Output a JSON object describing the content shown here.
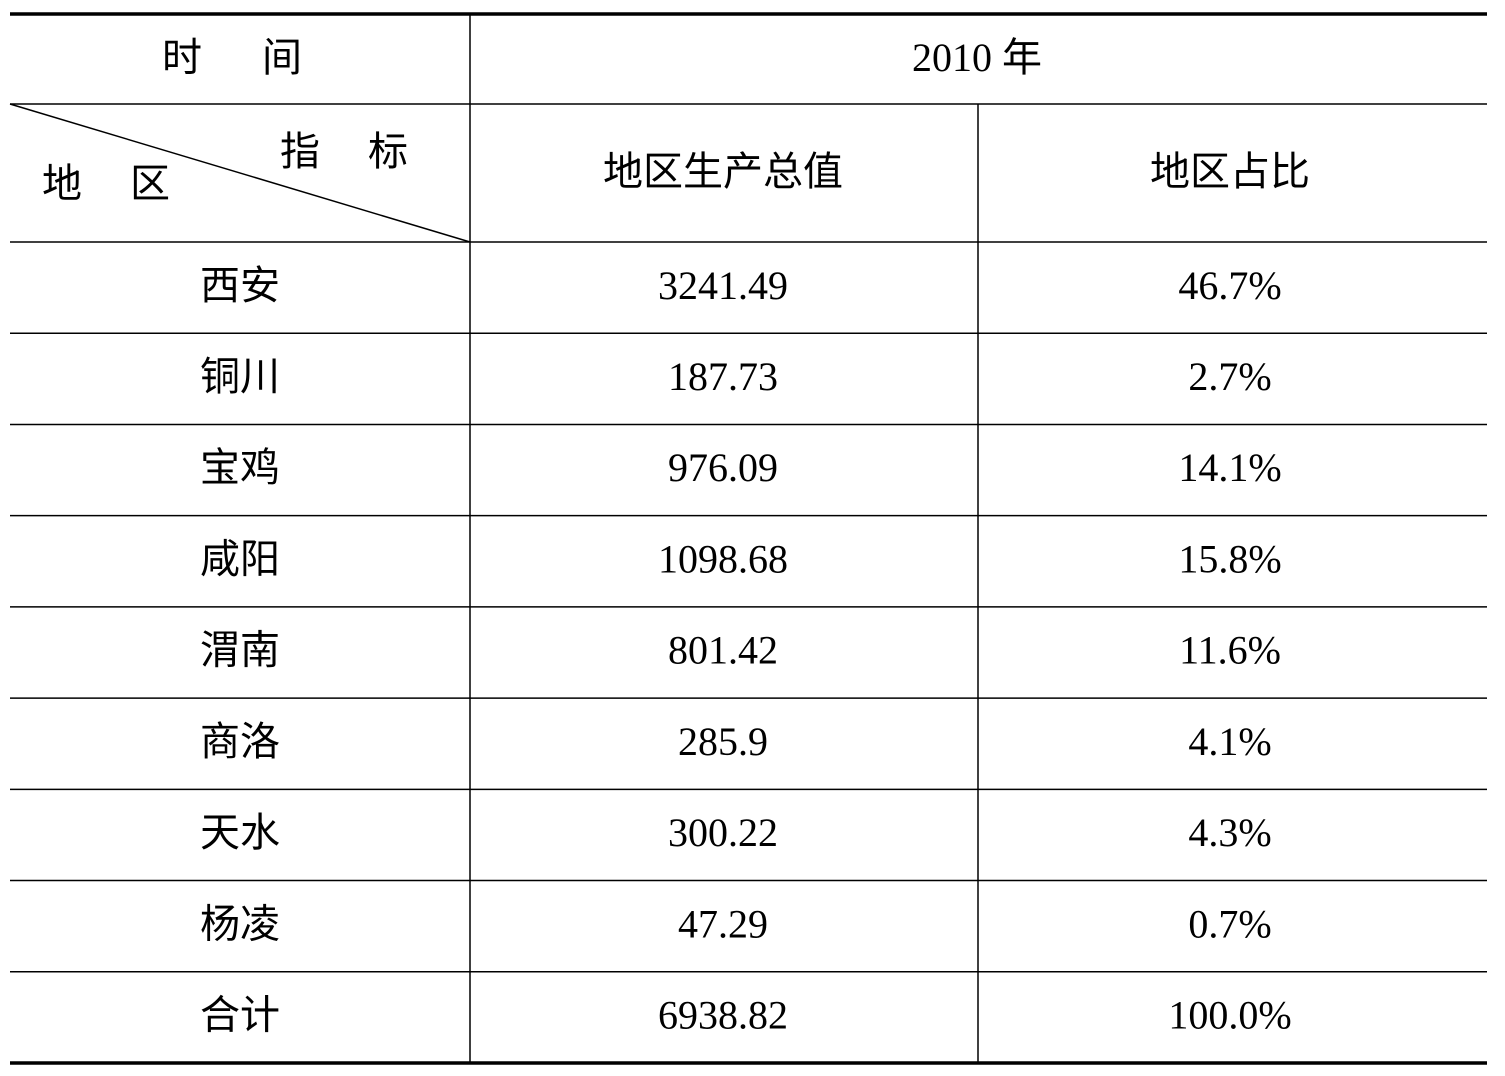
{
  "header": {
    "time_label": "时间",
    "year": "2010 年",
    "indicator_label": "指标",
    "region_label": "地区",
    "columns": [
      "地区生产总值",
      "地区占比"
    ]
  },
  "table": {
    "rows": [
      [
        "西安",
        "3241.49",
        "46.7%"
      ],
      [
        "铜川",
        "187.73",
        "2.7%"
      ],
      [
        "宝鸡",
        "976.09",
        "14.1%"
      ],
      [
        "咸阳",
        "1098.68",
        "15.8%"
      ],
      [
        "渭南",
        "801.42",
        "11.6%"
      ],
      [
        "商洛",
        "285.9",
        "4.1%"
      ],
      [
        "天水",
        "300.22",
        "4.3%"
      ],
      [
        "杨凌",
        "47.29",
        "0.7%"
      ],
      [
        "合计",
        "6938.82",
        "100.0%"
      ]
    ]
  }
}
